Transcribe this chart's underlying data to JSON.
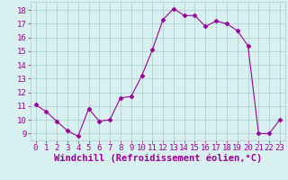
{
  "x": [
    0,
    1,
    2,
    3,
    4,
    5,
    6,
    7,
    8,
    9,
    10,
    11,
    12,
    13,
    14,
    15,
    16,
    17,
    18,
    19,
    20,
    21,
    22,
    23
  ],
  "y": [
    11.1,
    10.6,
    9.9,
    9.2,
    8.8,
    10.8,
    9.9,
    10.0,
    11.6,
    11.7,
    13.2,
    15.1,
    17.3,
    18.1,
    17.6,
    17.6,
    16.8,
    17.2,
    17.0,
    16.5,
    15.4,
    9.0,
    9.0,
    10.0
  ],
  "line_color": "#990099",
  "marker": "D",
  "marker_size": 2.5,
  "bg_color": "#d8f0f0",
  "grid_color": "#aacccc",
  "xlabel": "Windchill (Refroidissement éolien,°C)",
  "xlabel_color": "#990099",
  "xlabel_fontsize": 7.5,
  "yticks": [
    9,
    10,
    11,
    12,
    13,
    14,
    15,
    16,
    17,
    18
  ],
  "xticks": [
    0,
    1,
    2,
    3,
    4,
    5,
    6,
    7,
    8,
    9,
    10,
    11,
    12,
    13,
    14,
    15,
    16,
    17,
    18,
    19,
    20,
    21,
    22,
    23
  ],
  "ylim": [
    8.5,
    18.6
  ],
  "xlim": [
    -0.5,
    23.5
  ],
  "tick_color": "#990099",
  "tick_fontsize": 6.5
}
